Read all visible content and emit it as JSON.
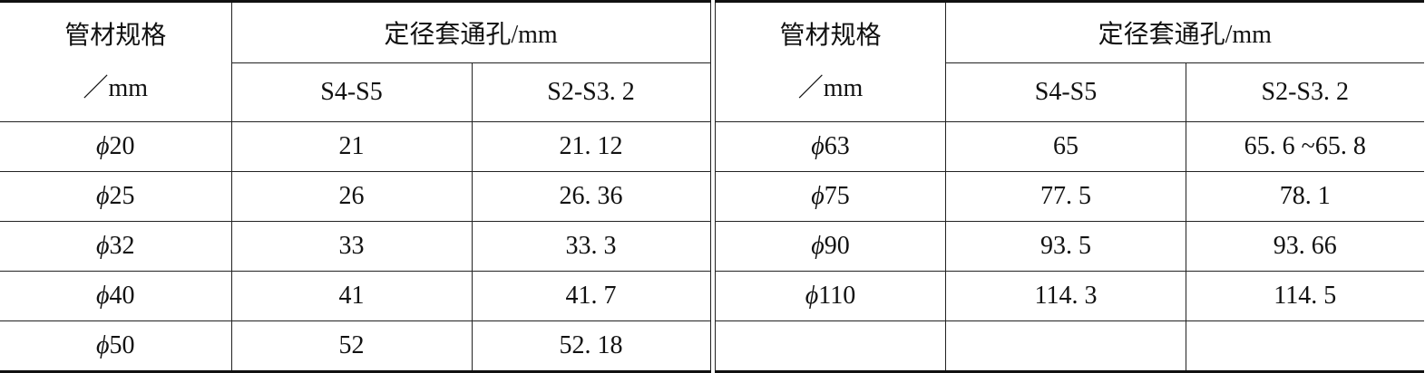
{
  "left_table": {
    "header": {
      "spec": "管材规格",
      "spec_unit": "／mm",
      "group": "定径套通孔/mm",
      "col1": "S4-S5",
      "col2": "S2-S3. 2"
    },
    "rows": [
      {
        "phi": "ϕ",
        "spec": "20",
        "s4s5": "21",
        "s2s32": "21. 12"
      },
      {
        "phi": "ϕ",
        "spec": "25",
        "s4s5": "26",
        "s2s32": "26. 36"
      },
      {
        "phi": "ϕ",
        "spec": "32",
        "s4s5": "33",
        "s2s32": "33. 3"
      },
      {
        "phi": "ϕ",
        "spec": "40",
        "s4s5": "41",
        "s2s32": "41. 7"
      },
      {
        "phi": "ϕ",
        "spec": "50",
        "s4s5": "52",
        "s2s32": "52. 18"
      }
    ]
  },
  "right_table": {
    "header": {
      "spec": "管材规格",
      "spec_unit": "／mm",
      "group": "定径套通孔/mm",
      "col1": "S4-S5",
      "col2": "S2-S3. 2"
    },
    "rows": [
      {
        "phi": "ϕ",
        "spec": "63",
        "s4s5": "65",
        "s2s32": "65. 6 ~65. 8"
      },
      {
        "phi": "ϕ",
        "spec": "75",
        "s4s5": "77. 5",
        "s2s32": "78. 1"
      },
      {
        "phi": "ϕ",
        "spec": "90",
        "s4s5": "93. 5",
        "s2s32": "93. 66"
      },
      {
        "phi": "ϕ",
        "spec": "110",
        "s4s5": "114. 3",
        "s2s32": "114. 5"
      },
      {
        "phi": "",
        "spec": "",
        "s4s5": "",
        "s2s32": ""
      }
    ]
  }
}
